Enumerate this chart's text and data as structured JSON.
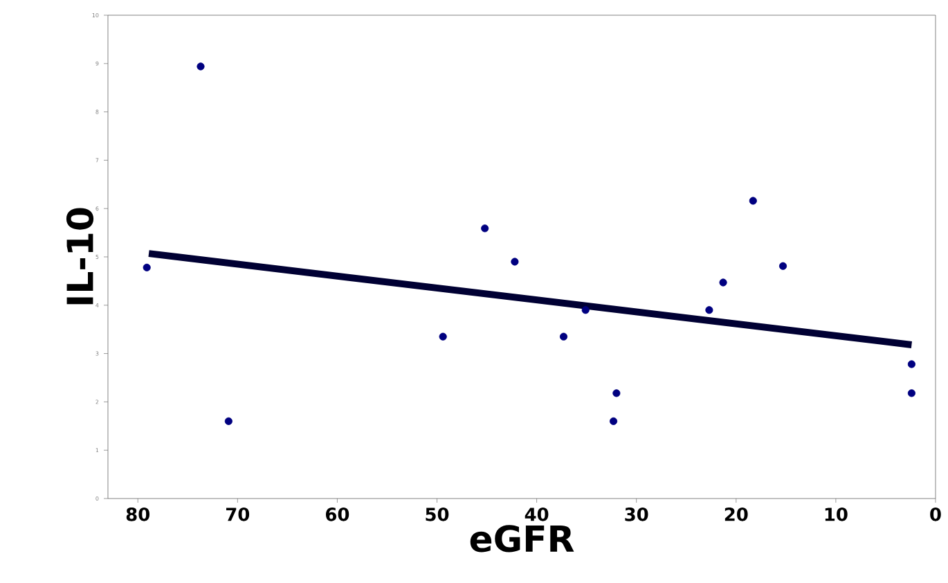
{
  "chart_data": {
    "type": "scatter",
    "xlabel": "eGFR",
    "ylabel": "IL-10",
    "xlim": [
      83,
      0
    ],
    "ylim": [
      0,
      10
    ],
    "xticks": [
      80,
      70,
      60,
      50,
      40,
      30,
      20,
      10,
      0
    ],
    "yticks": [
      0,
      1,
      2,
      3,
      4,
      5,
      6,
      7,
      8,
      9,
      10
    ],
    "grid": false,
    "series": [
      {
        "marker": "circle",
        "color": "#000080",
        "x": [
          79.1,
          73.7,
          70.9,
          49.4,
          45.2,
          42.2,
          37.3,
          35.1,
          32.0,
          32.3,
          22.7,
          21.3,
          18.3,
          15.3,
          2.4,
          2.4
        ],
        "values": [
          4.78,
          8.94,
          1.6,
          3.35,
          5.59,
          4.9,
          3.35,
          3.9,
          2.18,
          1.6,
          3.9,
          4.47,
          6.16,
          4.81,
          2.78,
          2.18
        ]
      },
      {
        "type": "line",
        "color": "#000033",
        "x": [
          78.9,
          2.4
        ],
        "values": [
          5.07,
          3.18
        ]
      }
    ]
  }
}
